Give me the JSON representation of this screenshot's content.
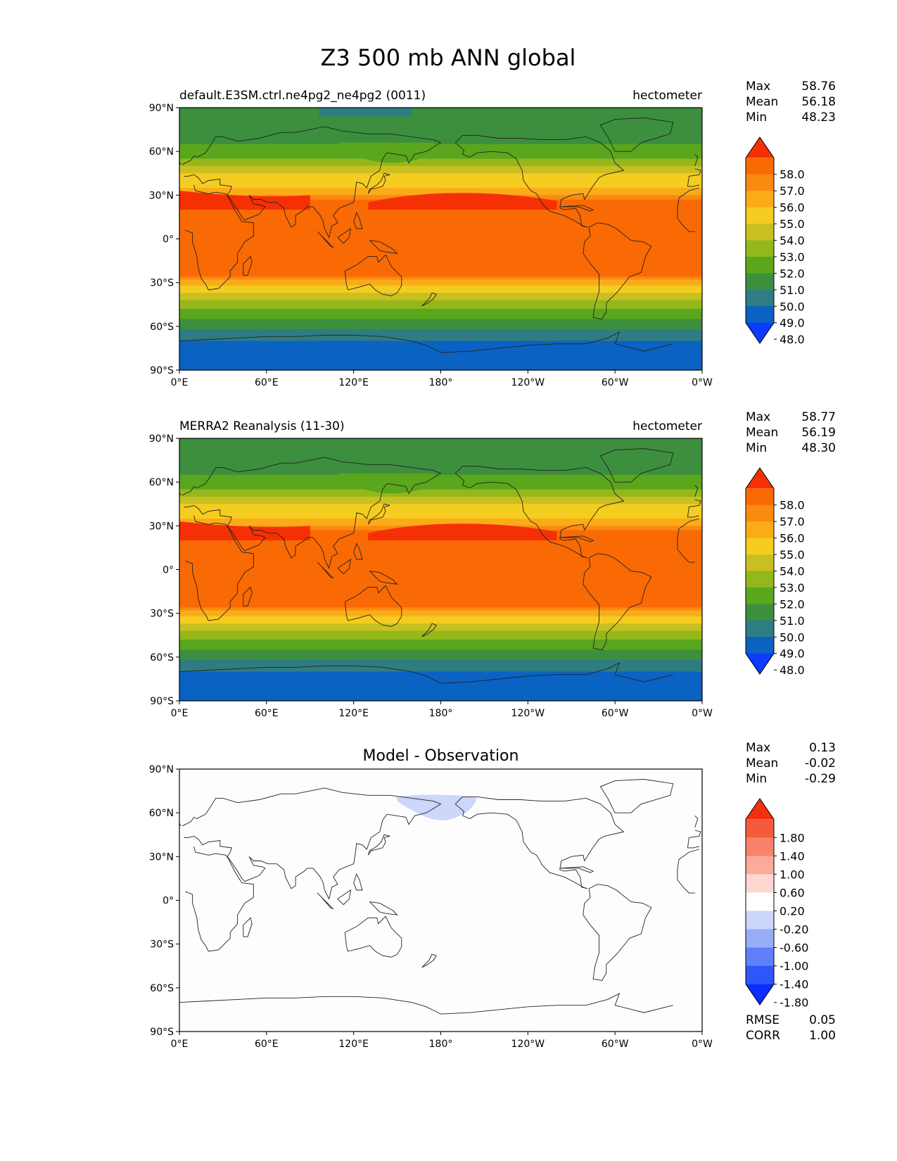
{
  "figure": {
    "title": "Z3 500 mb ANN global"
  },
  "axes": {
    "lat_ticks": [
      "90°N",
      "60°N",
      "30°N",
      "0°",
      "30°S",
      "60°S",
      "90°S"
    ],
    "lon_ticks": [
      "0°E",
      "60°E",
      "120°E",
      "180°",
      "120°W",
      "60°W",
      "0°W"
    ]
  },
  "stat_labels": {
    "max": "Max",
    "mean": "Mean",
    "min": "Min",
    "rmse": "RMSE",
    "corr": "CORR"
  },
  "colors": {
    "main_levels": [
      "#0b3cff",
      "#0a62c2",
      "#2e7d82",
      "#3d8f3e",
      "#5aa61d",
      "#94b81c",
      "#c8c020",
      "#f5cc20",
      "#fbab18",
      "#fb8a10",
      "#f96a05",
      "#f63005"
    ],
    "diff_levels": [
      "#0b2dff",
      "#2e56fb",
      "#5f80f9",
      "#98acf8",
      "#cdd6fb",
      "#ffffff",
      "#fdd7d0",
      "#fcaa9a",
      "#f8836a",
      "#f65a3d",
      "#f52e0d"
    ],
    "coastline": "#222222"
  },
  "chart_data": [
    {
      "type": "heatmap",
      "subtitle_left": "default.E3SM.ctrl.ne4pg2_ne4pg2 (0011)",
      "subtitle_right": "hectometer",
      "xlim": [
        0,
        360
      ],
      "ylim": [
        -90,
        90
      ],
      "stats": {
        "max": "58.76",
        "mean": "56.18",
        "min": "48.23"
      },
      "colorbar": {
        "ticks": [
          "58.0",
          "57.0",
          "56.0",
          "55.0",
          "54.0",
          "53.0",
          "52.0",
          "51.0",
          "50.0",
          "49.0",
          "48.0"
        ],
        "extend": "both"
      },
      "zonal_profile": {
        "lat": [
          -90,
          -75,
          -68,
          -62,
          -55,
          -48,
          -42,
          -37,
          -32,
          -28,
          -25,
          25,
          30,
          35,
          40,
          45,
          50,
          55,
          60,
          65,
          70,
          78,
          90
        ],
        "value": [
          48.4,
          48.6,
          49.2,
          50.0,
          51.0,
          52.0,
          53.0,
          54.0,
          55.0,
          56.0,
          57.5,
          57.5,
          56.0,
          55.0,
          54.5,
          54.0,
          53.0,
          52.0,
          51.5,
          51.0,
          50.8,
          50.4,
          50.2
        ]
      }
    },
    {
      "type": "heatmap",
      "subtitle_left": "MERRA2 Reanalysis (11-30)",
      "subtitle_right": "hectometer",
      "xlim": [
        0,
        360
      ],
      "ylim": [
        -90,
        90
      ],
      "stats": {
        "max": "58.77",
        "mean": "56.19",
        "min": "48.30"
      },
      "colorbar": {
        "ticks": [
          "58.0",
          "57.0",
          "56.0",
          "55.0",
          "54.0",
          "53.0",
          "52.0",
          "51.0",
          "50.0",
          "49.0",
          "48.0"
        ],
        "extend": "both"
      },
      "zonal_profile": {
        "lat": [
          -90,
          -75,
          -68,
          -62,
          -55,
          -48,
          -42,
          -37,
          -32,
          -28,
          -25,
          25,
          30,
          35,
          40,
          45,
          50,
          55,
          60,
          65,
          70,
          78,
          90
        ],
        "value": [
          48.4,
          48.6,
          49.2,
          50.0,
          51.0,
          52.0,
          53.0,
          54.0,
          55.0,
          56.0,
          57.5,
          57.5,
          56.0,
          55.0,
          54.5,
          54.0,
          53.0,
          52.0,
          51.5,
          51.0,
          50.8,
          50.4,
          50.3
        ]
      }
    },
    {
      "type": "heatmap",
      "title": "Model - Observation",
      "xlim": [
        0,
        360
      ],
      "ylim": [
        -90,
        90
      ],
      "stats": {
        "max": "0.13",
        "mean": "-0.02",
        "min": "-0.29"
      },
      "colorbar": {
        "ticks": [
          "1.80",
          "1.40",
          "1.00",
          "0.60",
          "0.20",
          "-0.20",
          "-0.60",
          "-1.00",
          "-1.40",
          "-1.80"
        ],
        "extend": "both"
      },
      "metrics": {
        "rmse": "0.05",
        "corr": "1.00"
      }
    }
  ]
}
